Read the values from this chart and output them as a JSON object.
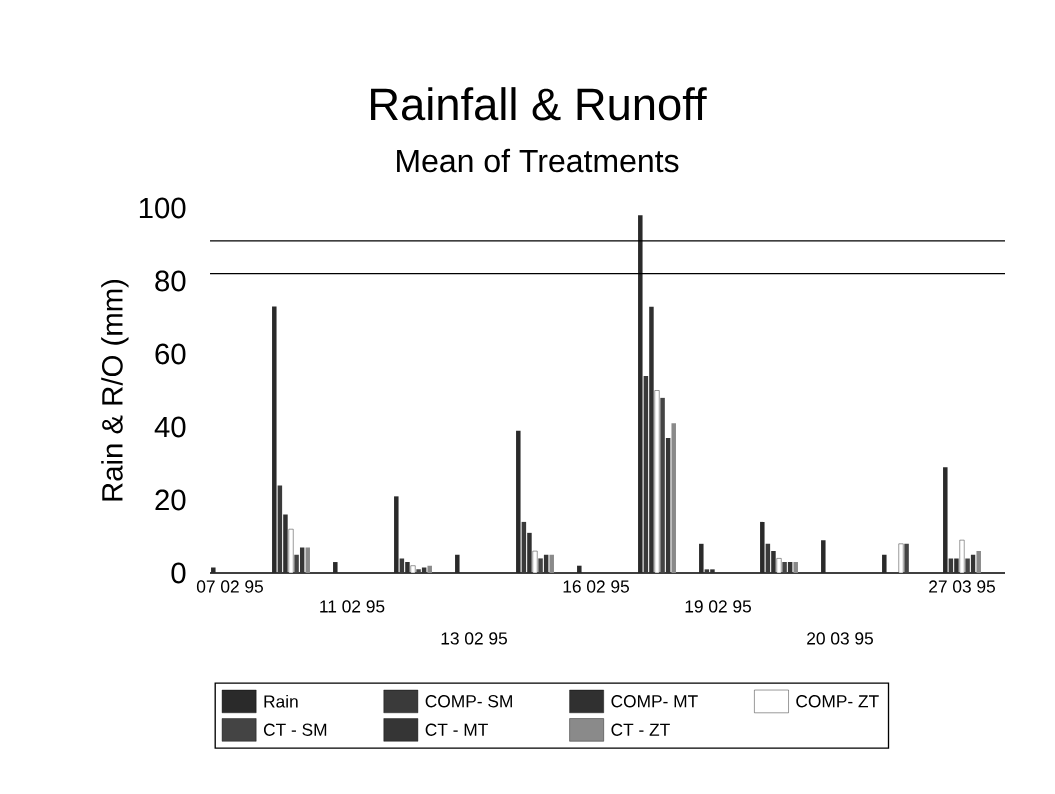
{
  "chart_data": {
    "type": "bar",
    "title": "Rainfall & Runoff",
    "subtitle": "Mean of Treatments",
    "ylabel": "Rain & R/O (mm)",
    "categories": [
      "07 02 95",
      null,
      "11 02 95",
      null,
      "13 02 95",
      null,
      "16 02 95",
      null,
      "19 02 95",
      null,
      "20 03 95",
      null,
      "27 03 95"
    ],
    "series": [
      {
        "name": "Rain",
        "color": "#2a2a2a",
        "values": [
          1.5,
          73,
          3,
          21,
          5,
          39,
          2,
          98,
          8,
          14,
          9,
          5,
          29
        ]
      },
      {
        "name": "COMP- SM",
        "color": "#3a3a3a",
        "values": [
          null,
          24,
          null,
          4,
          null,
          14,
          null,
          54,
          1,
          8,
          null,
          null,
          4
        ]
      },
      {
        "name": "COMP- MT",
        "color": "#303030",
        "values": [
          null,
          16,
          null,
          3,
          null,
          11,
          null,
          73,
          1,
          6,
          null,
          null,
          4
        ]
      },
      {
        "name": "COMP- ZT",
        "color": "#ffffff",
        "values": [
          null,
          12,
          null,
          2,
          null,
          6,
          null,
          50,
          null,
          4,
          null,
          8,
          9
        ]
      },
      {
        "name": "CT - SM",
        "color": "#444444",
        "values": [
          null,
          5,
          null,
          1,
          null,
          4,
          null,
          48,
          null,
          3,
          null,
          8,
          4
        ]
      },
      {
        "name": "CT - MT",
        "color": "#353535",
        "values": [
          null,
          7,
          null,
          1.5,
          null,
          5,
          null,
          37,
          null,
          3,
          null,
          null,
          5
        ]
      },
      {
        "name": "CT - ZT",
        "color": "#8a8a8a",
        "values": [
          null,
          7,
          null,
          2,
          null,
          5,
          null,
          41,
          null,
          3,
          null,
          null,
          6
        ]
      }
    ],
    "ylim": [
      0,
      100
    ],
    "yticks": [
      0,
      20,
      40,
      60,
      80,
      100
    ],
    "ref_lines": [
      {
        "axis": "y",
        "value": 91
      },
      {
        "axis": "y",
        "value": 82
      }
    ],
    "legend": "bottom"
  }
}
